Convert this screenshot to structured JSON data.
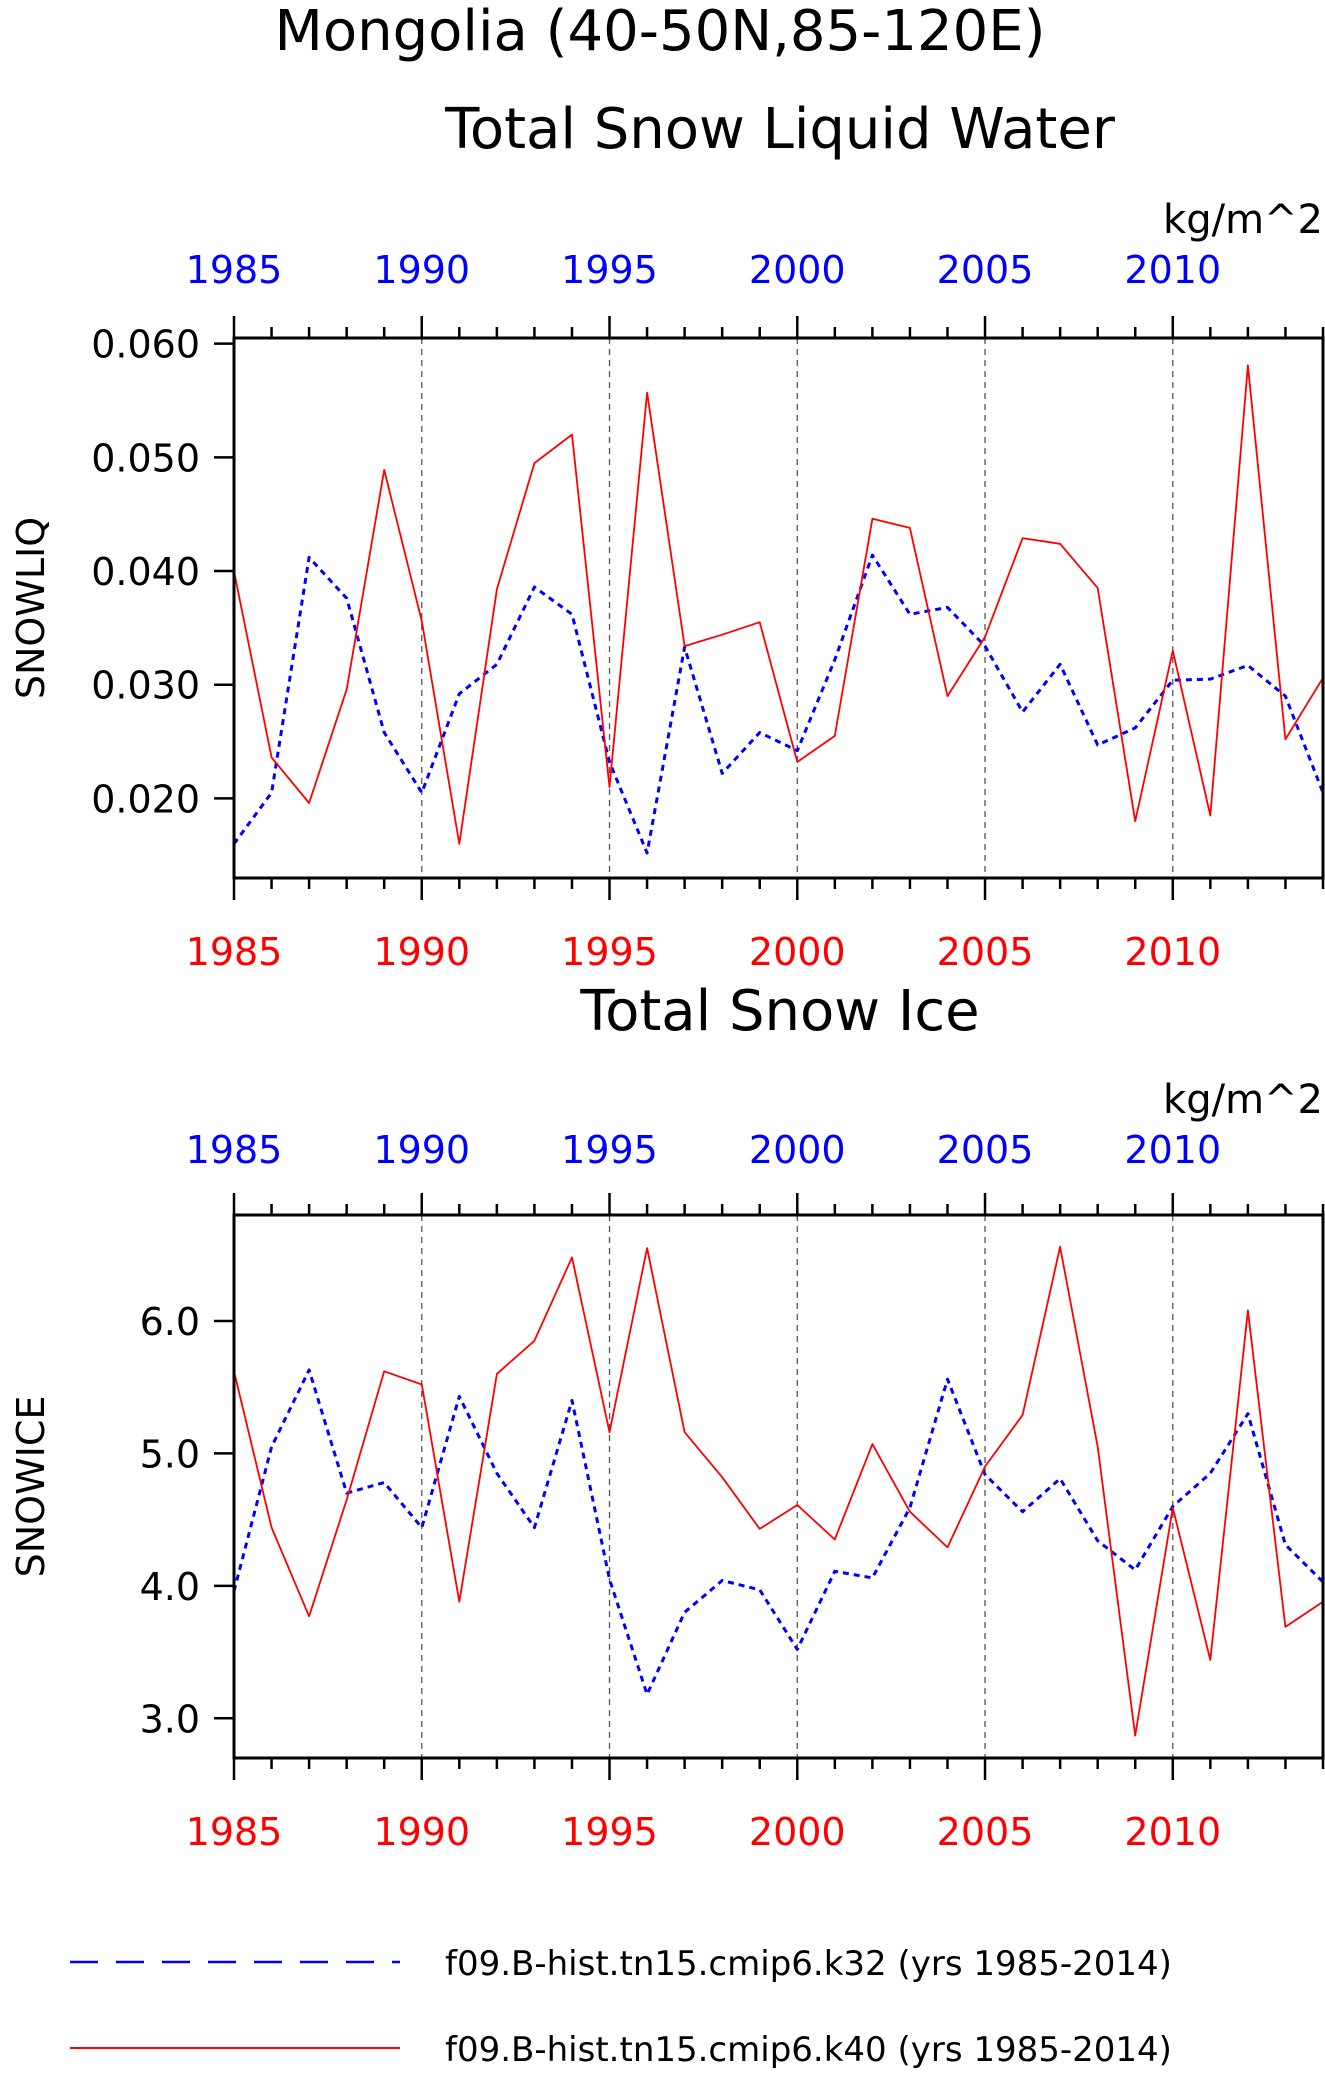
{
  "title": "Mongolia (40-50N,85-120E)",
  "colors": {
    "k32": "#0000ff",
    "k40": "#ff0000",
    "axis": "#000000",
    "grid": "#555555"
  },
  "legend": {
    "k32_label": "f09.B-hist.tn15.cmip6.k32 (yrs 1985-2014)",
    "k40_label": "f09.B-hist.tn15.cmip6.k40 (yrs 1985-2014)"
  },
  "chart_data": [
    {
      "type": "line",
      "title": "Total Snow Liquid Water",
      "ylabel": "SNOWLIQ",
      "units": "kg/m^2",
      "ylim": [
        0.013,
        0.0605
      ],
      "yticks": [
        "0.020",
        "0.030",
        "0.040",
        "0.050",
        "0.060"
      ],
      "xlim": [
        1985,
        2014
      ],
      "xticks": [
        1985,
        1990,
        1995,
        2000,
        2005,
        2010
      ],
      "grid": "vertical dashed at major x ticks",
      "x": [
        1985,
        1986,
        1987,
        1988,
        1989,
        1990,
        1991,
        1992,
        1993,
        1994,
        1995,
        1996,
        1997,
        1998,
        1999,
        2000,
        2001,
        2002,
        2003,
        2004,
        2005,
        2006,
        2007,
        2008,
        2009,
        2010,
        2011,
        2012,
        2013,
        2014
      ],
      "series": [
        {
          "name": "f09.B-hist.tn15.cmip6.k32 (yrs 1985-2014)",
          "color": "#0000ff",
          "style": "dashed",
          "values": [
            0.016,
            0.0205,
            0.0412,
            0.0376,
            0.0258,
            0.0205,
            0.0292,
            0.0318,
            0.0386,
            0.0362,
            0.0232,
            0.0152,
            0.0333,
            0.0222,
            0.0258,
            0.0242,
            0.0322,
            0.0414,
            0.0362,
            0.0368,
            0.0334,
            0.0276,
            0.0318,
            0.0247,
            0.0262,
            0.0304,
            0.0305,
            0.0317,
            0.029,
            0.0205
          ]
        },
        {
          "name": "f09.B-hist.tn15.cmip6.k40 (yrs 1985-2014)",
          "color": "#ff0000",
          "style": "solid",
          "values": [
            0.04,
            0.0236,
            0.0196,
            0.0296,
            0.0489,
            0.0356,
            0.016,
            0.0384,
            0.0495,
            0.052,
            0.021,
            0.0557,
            0.0334,
            0.0344,
            0.0355,
            0.0232,
            0.0255,
            0.0446,
            0.0438,
            0.029,
            0.0342,
            0.0429,
            0.0424,
            0.0385,
            0.018,
            0.033,
            0.0185,
            0.0581,
            0.0252,
            0.0306
          ]
        }
      ]
    },
    {
      "type": "line",
      "title": "Total Snow Ice",
      "ylabel": "SNOWICE",
      "units": "kg/m^2",
      "ylim": [
        2.7,
        6.8
      ],
      "yticks": [
        "3.0",
        "4.0",
        "5.0",
        "6.0"
      ],
      "xlim": [
        1985,
        2014
      ],
      "xticks": [
        1985,
        1990,
        1995,
        2000,
        2005,
        2010
      ],
      "grid": "vertical dashed at major x ticks",
      "x": [
        1985,
        1986,
        1987,
        1988,
        1989,
        1990,
        1991,
        1992,
        1993,
        1994,
        1995,
        1996,
        1997,
        1998,
        1999,
        2000,
        2001,
        2002,
        2003,
        2004,
        2005,
        2006,
        2007,
        2008,
        2009,
        2010,
        2011,
        2012,
        2013,
        2014
      ],
      "series": [
        {
          "name": "f09.B-hist.tn15.cmip6.k32 (yrs 1985-2014)",
          "color": "#0000ff",
          "style": "dashed",
          "values": [
            3.96,
            5.05,
            5.63,
            4.7,
            4.78,
            4.44,
            5.43,
            4.85,
            4.44,
            5.4,
            4.05,
            3.18,
            3.8,
            4.04,
            3.97,
            3.52,
            4.11,
            4.06,
            4.59,
            5.56,
            4.84,
            4.56,
            4.81,
            4.34,
            4.12,
            4.6,
            4.85,
            5.3,
            4.31,
            4.03
          ]
        },
        {
          "name": "f09.B-hist.tn15.cmip6.k40 (yrs 1985-2014)",
          "color": "#ff0000",
          "style": "solid",
          "values": [
            5.62,
            4.44,
            3.77,
            4.65,
            5.62,
            5.52,
            3.88,
            5.6,
            5.85,
            6.48,
            5.16,
            6.55,
            5.16,
            4.82,
            4.43,
            4.61,
            4.35,
            5.07,
            4.56,
            4.29,
            4.9,
            5.29,
            6.56,
            5.05,
            2.87,
            4.59,
            3.44,
            6.08,
            3.69,
            3.88
          ]
        }
      ]
    }
  ]
}
